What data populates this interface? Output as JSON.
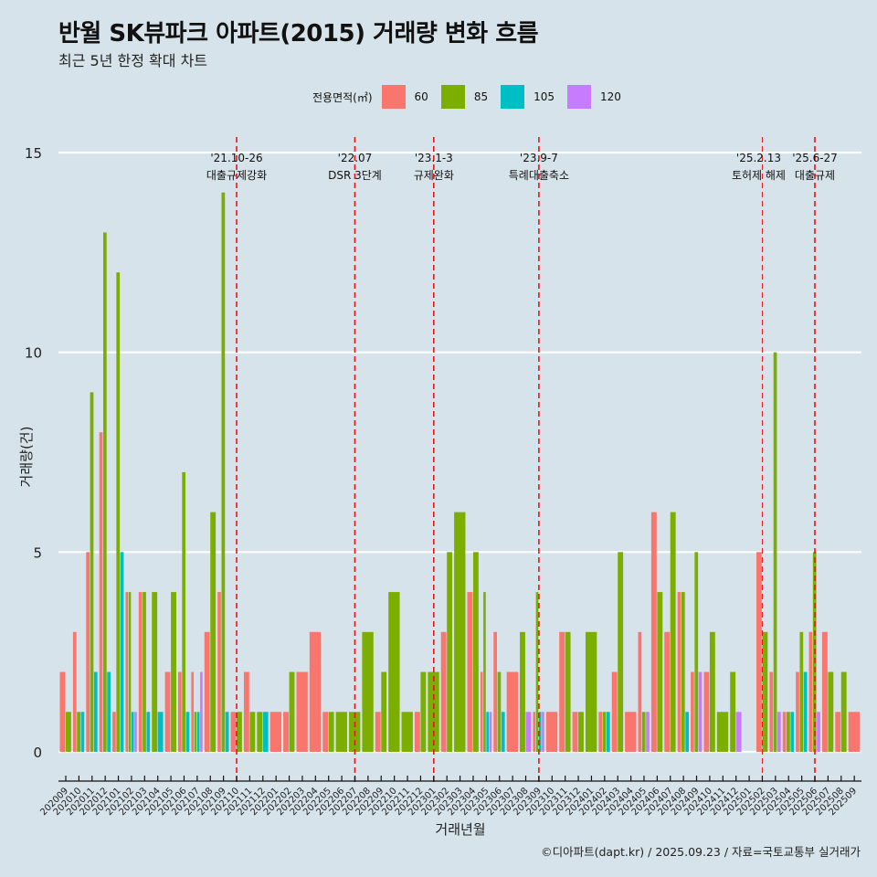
{
  "title": "반월 SK뷰파크 아파트(2015) 거래량 변화 흐름",
  "subtitle": "최근 5년 한정 확대 차트",
  "caption": "©디아파트(dapt.kr) / 2025.09.23 / 자료=국토교통부 실거래가",
  "legend": {
    "title": "전용면적(㎡)",
    "items": [
      {
        "label": "60",
        "color": "#f8766d"
      },
      {
        "label": "85",
        "color": "#7cae00"
      },
      {
        "label": "105",
        "color": "#00bfc4"
      },
      {
        "label": "120",
        "color": "#c77cff"
      }
    ]
  },
  "chart_data": {
    "type": "bar",
    "title": "반월 SK뷰파크 아파트(2015) 거래량 변화 흐름",
    "subtitle": "최근 5년 한정 확대 차트",
    "xlabel": "거래년월",
    "ylabel": "거래량(건)",
    "ylim": [
      0,
      15
    ],
    "yticks": [
      0,
      5,
      10,
      15
    ],
    "grid": "horizontal",
    "legend_position": "top",
    "categories": [
      "202009",
      "202010",
      "202011",
      "202012",
      "202101",
      "202102",
      "202103",
      "202104",
      "202105",
      "202106",
      "202107",
      "202108",
      "202109",
      "202110",
      "202111",
      "202112",
      "202201",
      "202202",
      "202203",
      "202204",
      "202205",
      "202206",
      "202207",
      "202208",
      "202209",
      "202210",
      "202211",
      "202212",
      "202301",
      "202302",
      "202303",
      "202304",
      "202305",
      "202306",
      "202307",
      "202308",
      "202309",
      "202310",
      "202311",
      "202312",
      "202401",
      "202402",
      "202403",
      "202404",
      "202405",
      "202406",
      "202407",
      "202408",
      "202409",
      "202410",
      "202411",
      "202412",
      "202501",
      "202502",
      "202503",
      "202504",
      "202505",
      "202506",
      "202507",
      "202508",
      "202509"
    ],
    "series": [
      {
        "name": "60",
        "color": "#f8766d",
        "values": [
          2,
          3,
          5,
          8,
          1,
          4,
          4,
          0,
          2,
          2,
          2,
          3,
          4,
          1,
          2,
          0,
          1,
          1,
          2,
          3,
          1,
          0,
          0,
          0,
          1,
          0,
          0,
          1,
          0,
          3,
          0,
          4,
          2,
          3,
          2,
          0,
          1,
          1,
          3,
          1,
          0,
          1,
          2,
          1,
          3,
          6,
          3,
          4,
          2,
          2,
          0,
          0,
          0,
          5,
          2,
          1,
          2,
          3,
          3,
          1,
          1
        ]
      },
      {
        "name": "85",
        "color": "#7cae00",
        "values": [
          1,
          1,
          9,
          13,
          12,
          4,
          4,
          4,
          4,
          7,
          1,
          6,
          14,
          1,
          1,
          1,
          0,
          2,
          0,
          0,
          1,
          1,
          1,
          3,
          2,
          4,
          1,
          2,
          2,
          5,
          6,
          5,
          4,
          2,
          0,
          3,
          4,
          0,
          3,
          1,
          3,
          1,
          5,
          0,
          1,
          4,
          6,
          4,
          5,
          3,
          1,
          2,
          0,
          3,
          10,
          1,
          3,
          5,
          2,
          2,
          0
        ]
      },
      {
        "name": "105",
        "color": "#00bfc4",
        "values": [
          0,
          1,
          2,
          2,
          5,
          1,
          1,
          1,
          0,
          1,
          1,
          0,
          1,
          0,
          0,
          1,
          0,
          0,
          0,
          0,
          0,
          0,
          0,
          0,
          0,
          0,
          0,
          0,
          0,
          0,
          0,
          0,
          1,
          1,
          0,
          0,
          1,
          0,
          0,
          0,
          0,
          1,
          0,
          0,
          0,
          0,
          0,
          1,
          0,
          0,
          0,
          0,
          0,
          0,
          0,
          1,
          2,
          0,
          0,
          0,
          0
        ]
      },
      {
        "name": "120",
        "color": "#c77cff",
        "values": [
          0,
          0,
          0,
          0,
          0,
          1,
          0,
          0,
          0,
          0,
          2,
          0,
          0,
          0,
          0,
          0,
          0,
          0,
          0,
          0,
          0,
          0,
          0,
          0,
          0,
          0,
          0,
          0,
          0,
          0,
          0,
          0,
          1,
          0,
          0,
          1,
          1,
          0,
          0,
          0,
          0,
          0,
          0,
          0,
          1,
          0,
          0,
          0,
          2,
          0,
          0,
          1,
          0,
          0,
          1,
          0,
          0,
          1,
          0,
          0,
          0
        ]
      }
    ],
    "annotations": [
      {
        "at": "202110",
        "date": "'21.10-26",
        "label": "대출규제강화"
      },
      {
        "at": "202207",
        "date": "'22.07",
        "label": "DSR 3단계"
      },
      {
        "at": "202301",
        "date": "'23.1-3",
        "label": "규제완화"
      },
      {
        "at": "202309",
        "date": "'23.9-7",
        "label": "특례대출축소"
      },
      {
        "at": "202502",
        "date": "'25.2.13",
        "label": "토허제 해제"
      },
      {
        "at": "202506",
        "date": "'25.6-27",
        "label": "대출규제"
      }
    ]
  }
}
